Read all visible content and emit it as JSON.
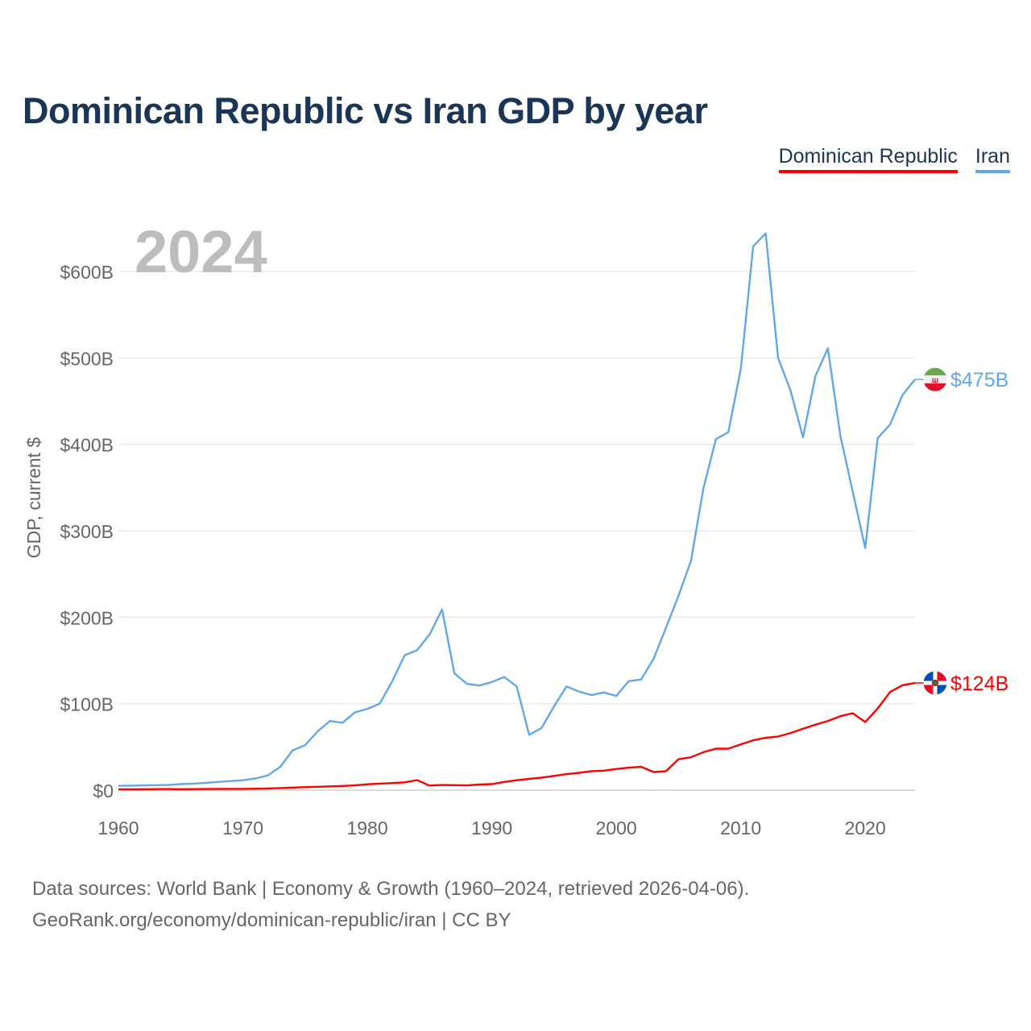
{
  "title": "Dominican Republic vs Iran GDP by year",
  "year_watermark": "2024",
  "source_line1": "Data sources: World Bank | Economy & Growth (1960–2024, retrieved 2026-04-06).",
  "source_line2": "GeoRank.org/economy/dominican-republic/iran | CC BY",
  "chart_data": {
    "type": "line",
    "title": "Dominican Republic vs Iran GDP by year",
    "xlabel": "",
    "ylabel": "GDP, current $",
    "xlim": [
      1960,
      2024
    ],
    "ylim": [
      0,
      650
    ],
    "x_ticks": [
      "1960",
      "1970",
      "1980",
      "1990",
      "2000",
      "2010",
      "2020"
    ],
    "y_ticks": [
      {
        "v": 0,
        "label": "$0"
      },
      {
        "v": 100,
        "label": "$100B"
      },
      {
        "v": 200,
        "label": "$200B"
      },
      {
        "v": 300,
        "label": "$300B"
      },
      {
        "v": 400,
        "label": "$400B"
      },
      {
        "v": 500,
        "label": "$500B"
      },
      {
        "v": 600,
        "label": "$600B"
      }
    ],
    "grid": true,
    "legend_position": "top-right",
    "x": [
      1960,
      1961,
      1962,
      1963,
      1964,
      1965,
      1966,
      1967,
      1968,
      1969,
      1970,
      1971,
      1972,
      1973,
      1974,
      1975,
      1976,
      1977,
      1978,
      1979,
      1980,
      1981,
      1982,
      1983,
      1984,
      1985,
      1986,
      1987,
      1988,
      1989,
      1990,
      1991,
      1992,
      1993,
      1994,
      1995,
      1996,
      1997,
      1998,
      1999,
      2000,
      2001,
      2002,
      2003,
      2004,
      2005,
      2006,
      2007,
      2008,
      2009,
      2010,
      2011,
      2012,
      2013,
      2014,
      2015,
      2016,
      2017,
      2018,
      2019,
      2020,
      2021,
      2022,
      2023,
      2024
    ],
    "series": [
      {
        "name": "Dominican Republic",
        "color": "#ff0000",
        "end_label": "$124B",
        "values": [
          1.0,
          1.0,
          1.1,
          1.2,
          1.3,
          1.1,
          1.2,
          1.3,
          1.4,
          1.5,
          1.5,
          1.7,
          2.0,
          2.4,
          3.0,
          3.5,
          3.9,
          4.4,
          4.8,
          5.5,
          6.8,
          7.5,
          8.2,
          9.0,
          11.6,
          5.3,
          6.0,
          5.8,
          5.5,
          6.5,
          7.0,
          9.5,
          11.5,
          13.0,
          14.5,
          16.5,
          18.5,
          20.0,
          22.0,
          22.5,
          24.5,
          26.0,
          27.0,
          21.0,
          22.0,
          35.9,
          38.0,
          44.0,
          48.0,
          48.0,
          53.0,
          57.7,
          60.6,
          62.0,
          66.0,
          71.0,
          75.7,
          80.0,
          85.6,
          89.0,
          78.8,
          94.5,
          113.6,
          121.4,
          124.0
        ]
      },
      {
        "name": "Iran",
        "color": "#62a8e8",
        "end_label": "$475B",
        "values": [
          5.0,
          5.2,
          5.5,
          5.8,
          6.0,
          7.0,
          7.5,
          8.5,
          9.5,
          10.5,
          11.5,
          13.5,
          17.0,
          27.0,
          46.0,
          52.0,
          68.0,
          80.0,
          78.0,
          90.0,
          94.0,
          100.0,
          126.0,
          156.0,
          162.0,
          180.0,
          209.0,
          135.0,
          123.0,
          121.0,
          125.0,
          131.0,
          120.0,
          64.0,
          72.0,
          97.0,
          120.0,
          114.0,
          110.0,
          113.0,
          109.0,
          126.0,
          128.0,
          152.0,
          188.0,
          225.0,
          265.0,
          349.0,
          406.0,
          414.0,
          487.0,
          629.0,
          644.0,
          500.0,
          462.0,
          408.0,
          479.0,
          511.0,
          410.0,
          345.0,
          280.0,
          407.0,
          423.0,
          457.0,
          475.0
        ]
      }
    ]
  }
}
